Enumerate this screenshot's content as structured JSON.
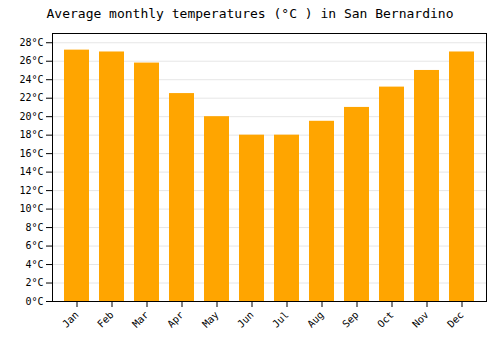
{
  "chart_data": {
    "type": "bar",
    "title": "Average monthly temperatures (°C ) in San Bernardino",
    "categories": [
      "Jan",
      "Feb",
      "Mar",
      "Apr",
      "May",
      "Jun",
      "Jul",
      "Aug",
      "Sep",
      "Oct",
      "Nov",
      "Dec"
    ],
    "values": [
      27.2,
      27.0,
      25.8,
      22.5,
      20.0,
      18.0,
      18.0,
      19.5,
      21.0,
      23.2,
      25.0,
      27.0
    ],
    "color": "#FFA500",
    "ylim": [
      0,
      29
    ],
    "yticks": [
      {
        "value": 0,
        "label": "0°C"
      },
      {
        "value": 2,
        "label": "2°C"
      },
      {
        "value": 4,
        "label": "4°C"
      },
      {
        "value": 6,
        "label": "6°C"
      },
      {
        "value": 8,
        "label": "8°C"
      },
      {
        "value": 10,
        "label": "10°C"
      },
      {
        "value": 12,
        "label": "12°C"
      },
      {
        "value": 14,
        "label": "14°C"
      },
      {
        "value": 16,
        "label": "16°C"
      },
      {
        "value": 18,
        "label": "18°C"
      },
      {
        "value": 20,
        "label": "20°C"
      },
      {
        "value": 22,
        "label": "22°C"
      },
      {
        "value": 24,
        "label": "24°C"
      },
      {
        "value": 26,
        "label": "26°C"
      },
      {
        "value": 28,
        "label": "28°C"
      }
    ],
    "grid": true
  }
}
